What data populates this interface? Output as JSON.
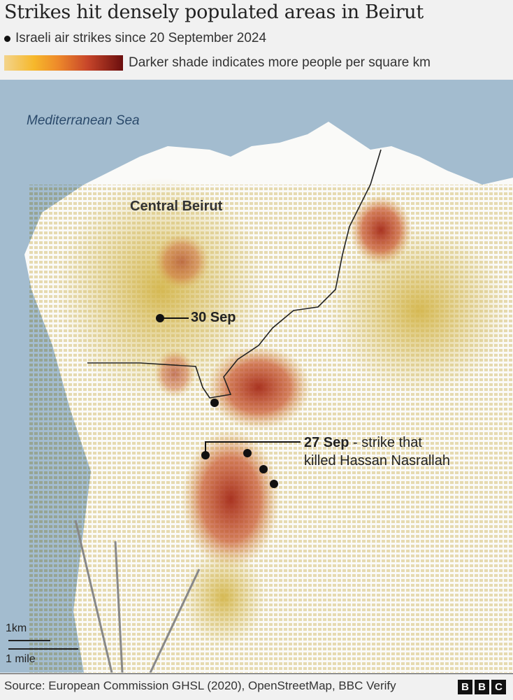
{
  "header": {
    "title": "Strikes hit densely populated areas in Beirut",
    "legend_strikes": "Israeli air strikes since 20 September 2024",
    "legend_density": "Darker shade indicates more people per square km",
    "density_ramp_colors": [
      "#f3d48c",
      "#f6b82b",
      "#ee8a2a",
      "#c8462a",
      "#6b0e0e"
    ]
  },
  "map": {
    "sea_label": "Mediterranean Sea",
    "city_label": "Central Beirut",
    "annotation_30sep": "30 Sep",
    "annotation_27sep_date": "27 Sep",
    "annotation_27sep_text": " - strike that",
    "annotation_27sep_text2": "killed Hassan Nasrallah",
    "scale_km": "1km",
    "scale_mile": "1 mile",
    "colors": {
      "sea": "#a3bccf",
      "land": "#fbfbfa",
      "low_density": "#d2b64a",
      "high_density": "#a8301c",
      "strike": "#111111"
    }
  },
  "footer": {
    "source": "Source: European Commission GHSL (2020), OpenStreetMap, BBC Verify",
    "logo": [
      "B",
      "B",
      "C"
    ]
  }
}
